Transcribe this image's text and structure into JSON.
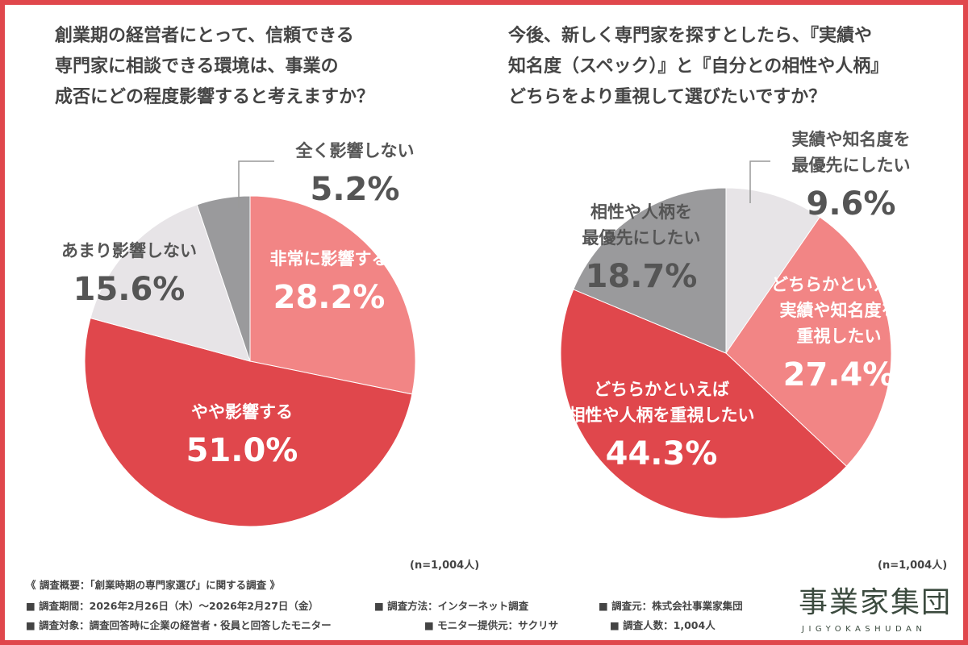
{
  "chart_data": [
    {
      "type": "pie",
      "title": "創業期の経営者にとって、信頼できる\n専門家に相談できる環境は、事業の\n成否にどの程度影響すると考えますか？",
      "note": "(n=1,004人)",
      "slices": [
        {
          "label": "非常に影響する",
          "value": 28.2,
          "display": "28.2%",
          "color": "#f28585"
        },
        {
          "label": "やや影響する",
          "value": 51.0,
          "display": "51.0%",
          "color": "#e0474c"
        },
        {
          "label": "あまり影響しない",
          "value": 15.6,
          "display": "15.6%",
          "color": "#e7e4e7"
        },
        {
          "label": "全く影響しない",
          "value": 5.2,
          "display": "5.2%",
          "color": "#9a9a9c"
        }
      ]
    },
    {
      "type": "pie",
      "title": "今後、新しく専門家を探すとしたら、『実績や\n知名度（スペック）』と『自分との相性や人柄』\nどちらをより重視して選びたいですか？",
      "note": "(n=1,004人)",
      "slices": [
        {
          "label": "実績や知名度を\n最優先にしたい",
          "value": 9.6,
          "display": "9.6%",
          "color": "#e7e4e7"
        },
        {
          "label": "どちらかといえば\n実績や知名度を\n重視したい",
          "value": 27.4,
          "display": "27.4%",
          "color": "#f28585"
        },
        {
          "label": "どちらかといえば\n相性や人柄を重視したい",
          "value": 44.3,
          "display": "44.3%",
          "color": "#e0474c"
        },
        {
          "label": "相性や人柄を\n最優先にしたい",
          "value": 18.7,
          "display": "18.7%",
          "color": "#9a9a9c"
        }
      ]
    }
  ],
  "footer": {
    "summary": "《 調査概要：「創業時期の専門家選び」に関する調査 》",
    "items": [
      "■ 調査期間：2026年2月26日（木）～2026年2月27日（金）",
      "■ 調査方法：インターネット調査",
      "■ 調査元：株式会社事業家集団",
      "■ 調査対象：調査回答時に企業の経営者・役員と回答したモニター",
      "■ モニター提供元：サクリサ",
      "■ 調査人数：1,004人"
    ]
  },
  "logo": {
    "text": "事業家集団",
    "sub": "JIGYOKASHUDAN"
  }
}
